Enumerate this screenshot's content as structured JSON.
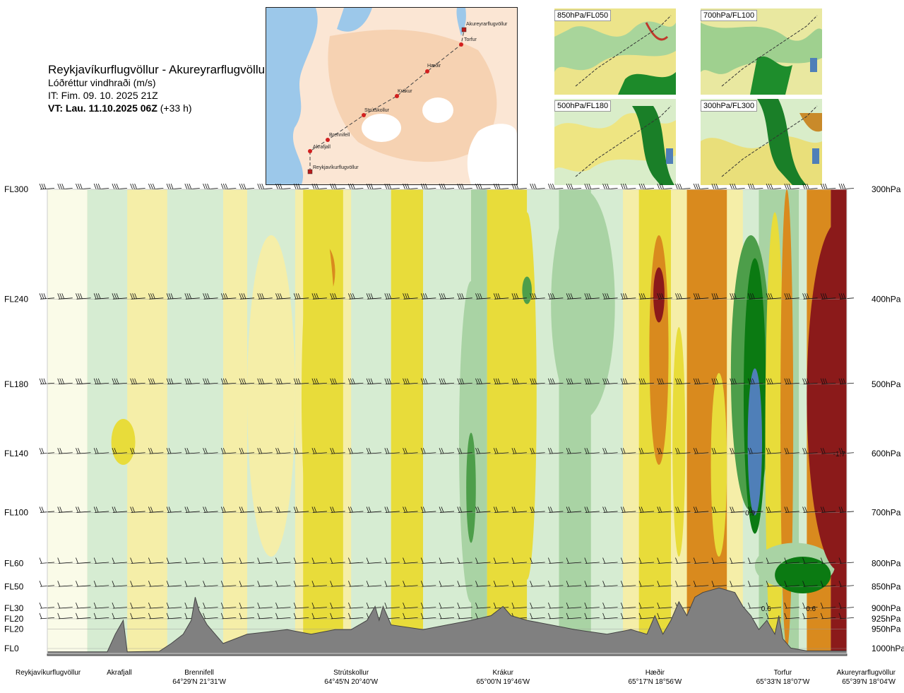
{
  "header": {
    "title": "Reykjavíkurflugvöllur - Akureyrarflugvöllur",
    "subtitle": "Lóðréttur vindhraði (m/s)",
    "issue_time": "IT: Fim. 09. 10. 2025 21Z",
    "valid_time_bold": "VT: Lau. 11.10.2025 06Z",
    "valid_time_offset": "(+33 h)"
  },
  "route_map": {
    "waypoints": [
      "Akureyrarflugvöllur",
      "Torfur",
      "Hæðir",
      "Krákur",
      "Strútskollur",
      "Brennifell",
      "Akrafjall",
      "Reykjavíkurflugvöllur"
    ]
  },
  "thumbnails": [
    {
      "label": "850hPa/FL050"
    },
    {
      "label": "700hPa/FL100"
    },
    {
      "label": "500hPa/FL180"
    },
    {
      "label": "300hPa/FL300"
    }
  ],
  "chart_data": {
    "type": "heatmap",
    "title": "Lóðréttur vindhraði (m/s)",
    "flight_levels": [
      {
        "fl": "FL300",
        "hpa": "300hPa",
        "p": 300
      },
      {
        "fl": "FL240",
        "hpa": "400hPa",
        "p": 400
      },
      {
        "fl": "FL180",
        "hpa": "500hPa",
        "p": 500
      },
      {
        "fl": "FL140",
        "hpa": "600hPa",
        "p": 600
      },
      {
        "fl": "FL100",
        "hpa": "700hPa",
        "p": 700
      },
      {
        "fl": "FL60",
        "hpa": "800hPa",
        "p": 800
      },
      {
        "fl": "FL50",
        "hpa": "850hPa",
        "p": 850
      },
      {
        "fl": "FL30",
        "hpa": "900hPa",
        "p": 900
      },
      {
        "fl": "FL20",
        "hpa": "925hPa",
        "p": 925
      },
      {
        "fl": "FL20",
        "hpa": "950hPa",
        "p": 950
      },
      {
        "fl": "FL0",
        "hpa": "1000hPa",
        "p": 1000
      }
    ],
    "locations": [
      {
        "name": "Reykjavíkurflugvöllur",
        "coord": "",
        "pos": 0.0
      },
      {
        "name": "Akrafjall",
        "coord": "",
        "pos": 0.09
      },
      {
        "name": "Brennifell",
        "coord": "64°29'N 21°31'W",
        "pos": 0.19
      },
      {
        "name": "Strútskollur",
        "coord": "64°45'N 20°40'W",
        "pos": 0.38
      },
      {
        "name": "Krákur",
        "coord": "65°00'N 19°46'W",
        "pos": 0.57
      },
      {
        "name": "Hæðir",
        "coord": "65°17'N 18°56'W",
        "pos": 0.76
      },
      {
        "name": "Torfur",
        "coord": "65°33'N 18°07'W",
        "pos": 0.92
      },
      {
        "name": "Akureyrarflugvöllur",
        "coord": "65°39'N 18°04'W",
        "pos": 1.0
      }
    ],
    "annotations": [
      "-1.7",
      "0.9",
      "0.6",
      "0.6"
    ],
    "colors": {
      "strong_down": "#8b1a1a",
      "mod_down": "#d98a1e",
      "weak_down": "#e8dc3a",
      "very_weak_down": "#f5eea8",
      "neutral": "#fafbe8",
      "very_weak_up": "#d6ecd2",
      "weak_up": "#a9d3a4",
      "mod_up": "#4d9e4a",
      "strong_up": "#0b7a12",
      "very_strong_up": "#4f7fb8",
      "terrain": "#808080"
    }
  }
}
